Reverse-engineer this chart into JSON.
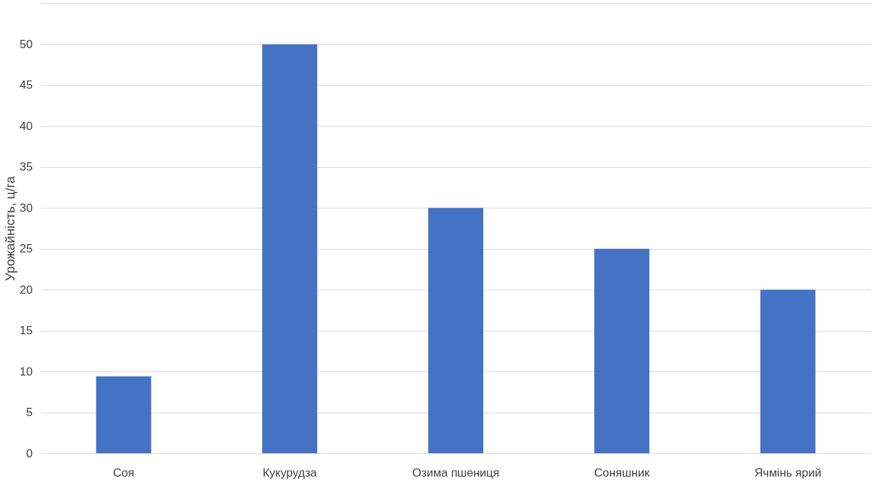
{
  "chart_data": {
    "type": "bar",
    "ylabel": "Урожайність, ц/га",
    "categories": [
      "Соя",
      "Кукурудза",
      "Озима пшениця",
      "Соняшник",
      "Ячмінь ярий"
    ],
    "values": [
      9.4,
      50,
      30,
      25,
      20
    ],
    "color": "#4472c4",
    "ylim": [
      0,
      55
    ],
    "yticks": [
      0,
      5,
      10,
      15,
      20,
      25,
      30,
      35,
      40,
      45,
      50,
      {
        "value": 55,
        "label": null
      }
    ],
    "grid": "y"
  }
}
